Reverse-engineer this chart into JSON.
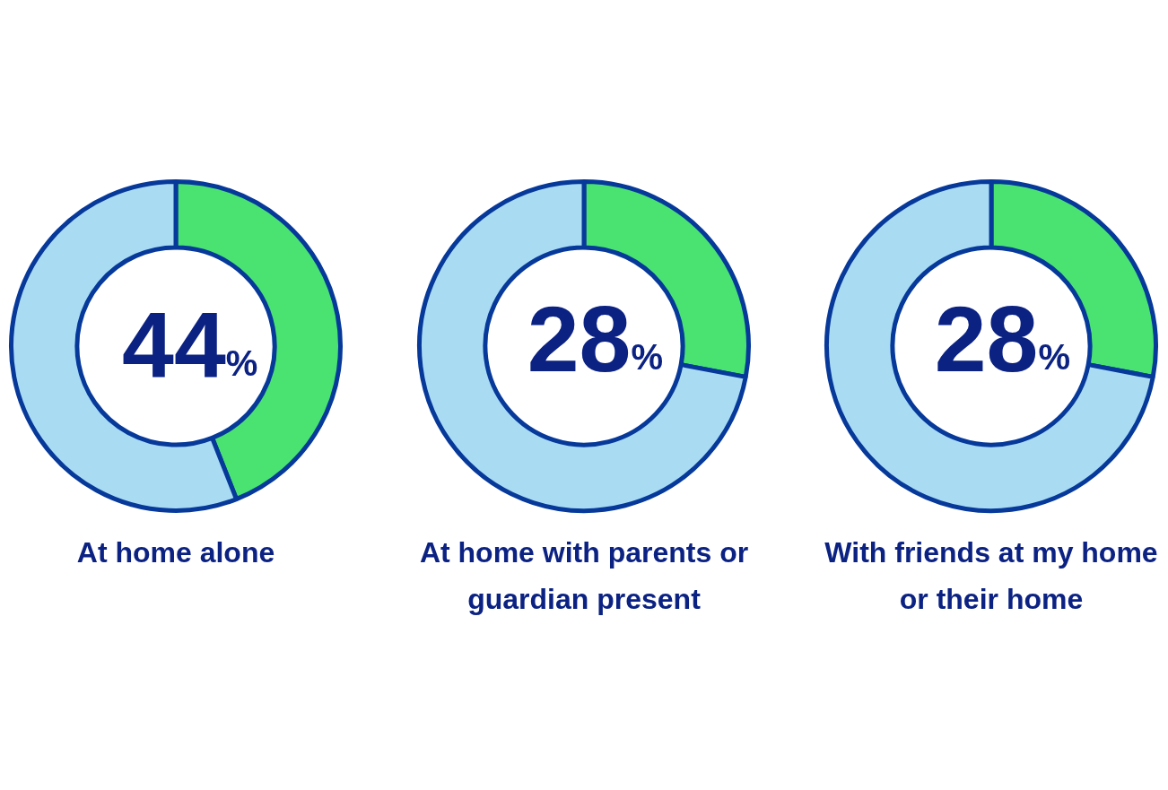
{
  "chart_data": [
    {
      "type": "donut",
      "title": "At home alone",
      "categories": [
        null,
        null
      ],
      "values": [
        44,
        56
      ],
      "colors": [
        "#4ae371",
        "#a9dcf3"
      ],
      "value_labels": [
        "44%",
        null
      ]
    },
    {
      "type": "donut",
      "title": "At home with parents or guardian present",
      "categories": [
        null,
        null
      ],
      "values": [
        28,
        72
      ],
      "colors": [
        "#4ae371",
        "#a9dcf3"
      ],
      "value_labels": [
        "28%",
        null
      ]
    },
    {
      "type": "donut",
      "title": "With friends at my home or their home",
      "categories": [
        null,
        null
      ],
      "values": [
        28,
        72
      ],
      "colors": [
        "#4ae371",
        "#a9dcf3"
      ],
      "value_labels": [
        "28%",
        null
      ]
    }
  ]
}
